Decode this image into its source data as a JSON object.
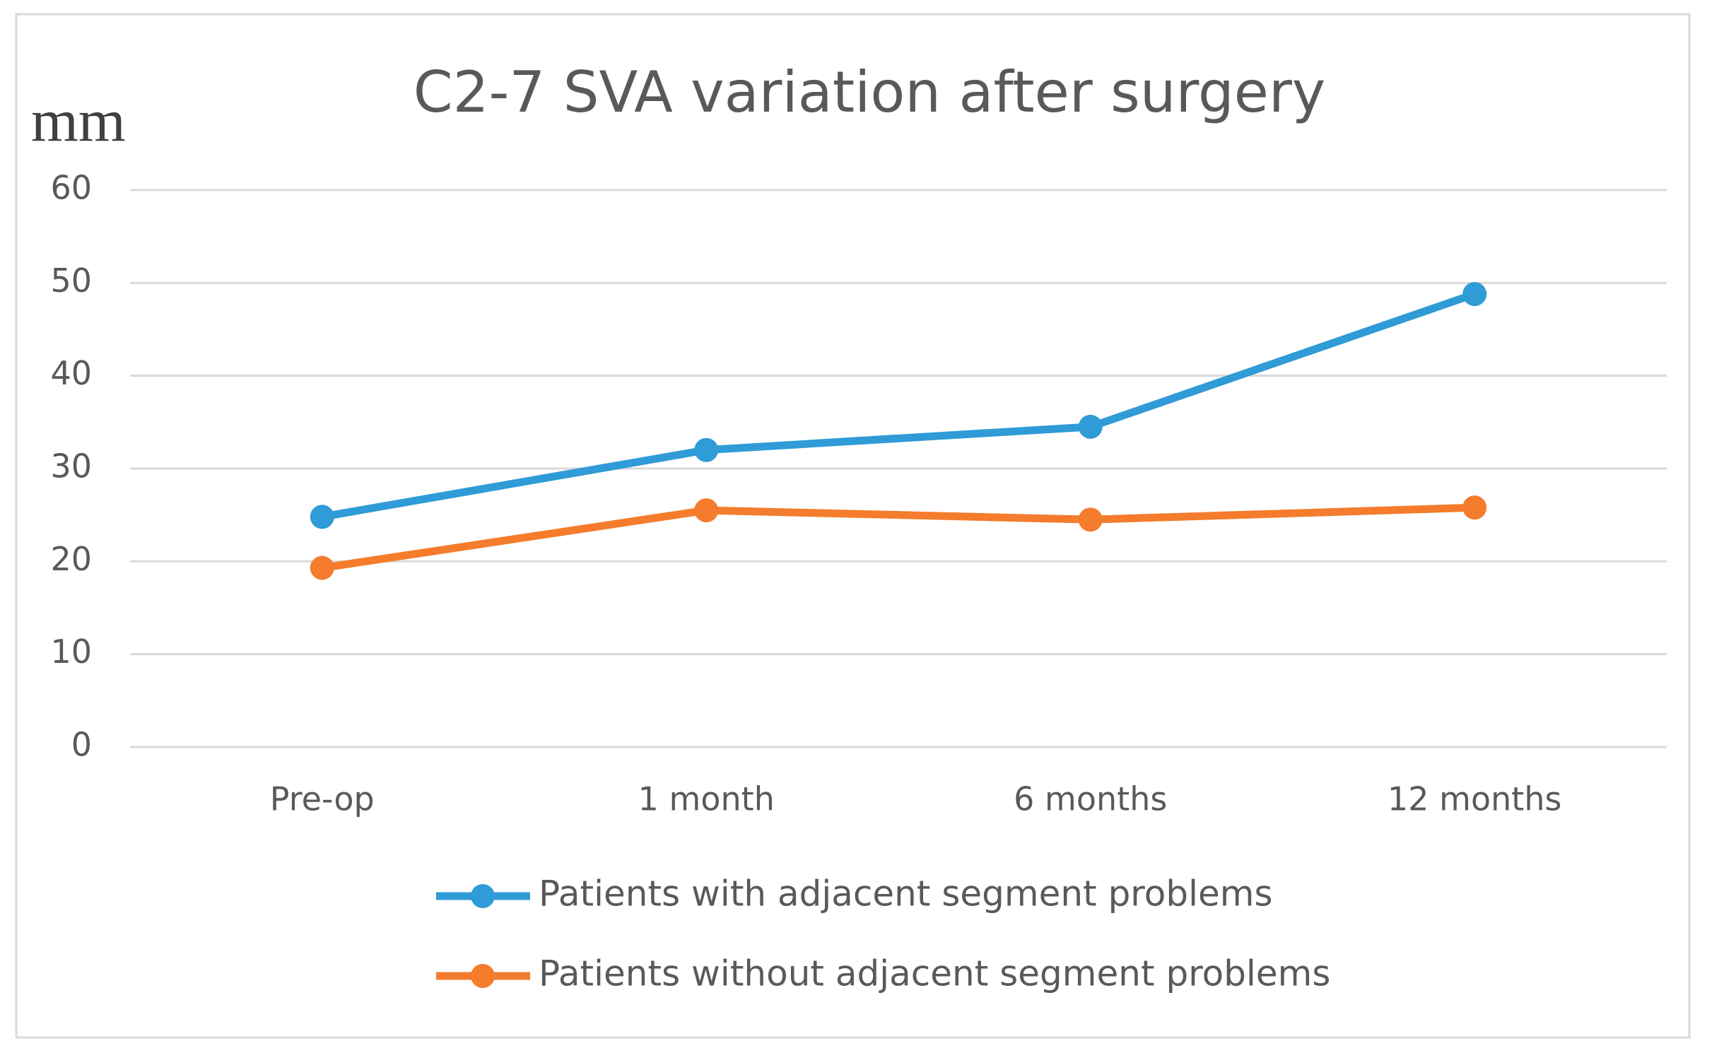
{
  "chart_data": {
    "type": "line",
    "title": "C2-7 SVA variation after surgery",
    "y_label": "mm",
    "categories": [
      "Pre-op",
      "1 month",
      "6 months",
      "12 months"
    ],
    "series": [
      {
        "name": "Patients with adjacent segment problems",
        "color": "#2f9bd7",
        "values": [
          24.8,
          32,
          34.5,
          48.8
        ]
      },
      {
        "name": "Patients without adjacent segment problems",
        "color": "#f47c2c",
        "values": [
          19.3,
          25.5,
          24.5,
          25.8
        ]
      }
    ],
    "ylim": [
      0,
      60
    ],
    "yticks": [
      0,
      10,
      20,
      30,
      40,
      50,
      60
    ],
    "grid": true,
    "legend": "bottom"
  }
}
